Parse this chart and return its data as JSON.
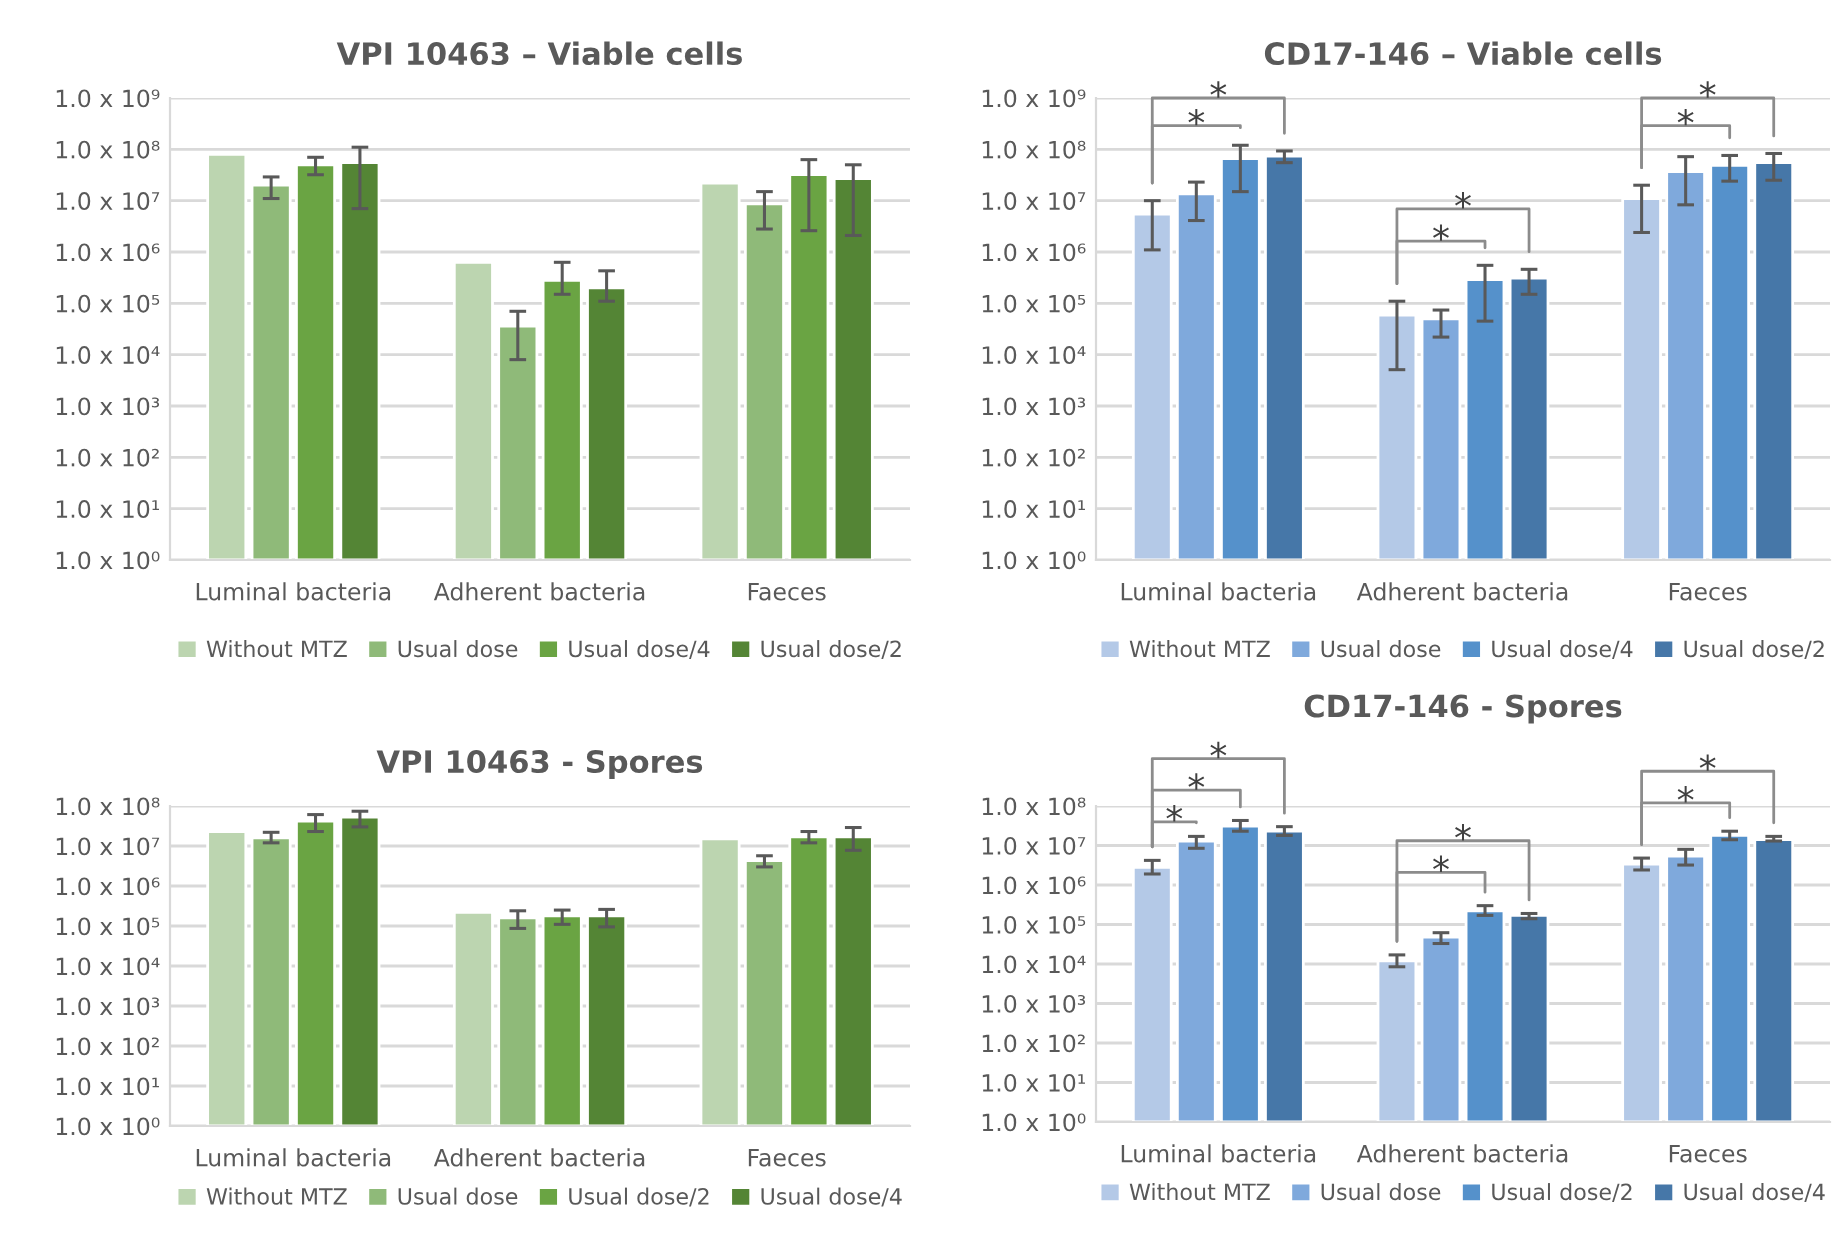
{
  "chart_data": [
    {
      "type": "bar",
      "title": "VPI 10463 – Viable cells",
      "categories": [
        "Luminal bacteria",
        "Adherent bacteria",
        "Faeces"
      ],
      "log": true,
      "grid": "y",
      "legend": "bottom",
      "ylim": [
        1,
        1000000000
      ],
      "yticks": [
        {
          "value": 1,
          "label": "1.0 x 10⁰"
        },
        {
          "value": 10,
          "label": "1.0 x 10¹"
        },
        {
          "value": 100,
          "label": "1.0 x 10²"
        },
        {
          "value": 1000,
          "label": "1.0 x 10³"
        },
        {
          "value": 10000,
          "label": "1.0 x 10⁴"
        },
        {
          "value": 100000,
          "label": "1.0 x 10⁵"
        },
        {
          "value": 1000000,
          "label": "1.0 x 10⁶"
        },
        {
          "value": 10000000,
          "label": "1.0 x 10⁷"
        },
        {
          "value": 100000000,
          "label": "1.0 x 10⁸"
        },
        {
          "value": 1000000000,
          "label": "1.0 x 10⁹"
        }
      ],
      "series": [
        {
          "name": "Without MTZ",
          "color": "#bcd5b0",
          "values": [
            80000000,
            630000,
            22000000
          ]
        },
        {
          "name": "Usual dose",
          "color": "#8fba79",
          "values": [
            20000000,
            36000,
            8700000
          ],
          "errors": [
            [
              11000000,
              29000000
            ],
            [
              8000,
              70000
            ],
            [
              2800000,
              15000000
            ]
          ]
        },
        {
          "name": "Usual dose/4",
          "color": "#6aa443",
          "values": [
            50000000,
            280000,
            32000000
          ],
          "errors": [
            [
              32000000,
              70000000
            ],
            [
              150000,
              630000
            ],
            [
              2600000,
              63000000
            ]
          ]
        },
        {
          "name": "Usual dose/2",
          "color": "#548535",
          "values": [
            55000000,
            200000,
            27000000
          ],
          "errors": [
            [
              7000000,
              110000000
            ],
            [
              110000,
              430000
            ],
            [
              2100000,
              50000000
            ]
          ]
        }
      ]
    },
    {
      "type": "bar",
      "title": "CD17-146 – Viable cells",
      "categories": [
        "Luminal bacteria",
        "Adherent bacteria",
        "Faeces"
      ],
      "log": true,
      "grid": "y",
      "legend": "bottom",
      "ylim": [
        1,
        1000000000
      ],
      "yticks": [
        {
          "value": 1,
          "label": "1.0 x 10⁰"
        },
        {
          "value": 10,
          "label": "1.0 x 10¹"
        },
        {
          "value": 100,
          "label": "1.0 x 10²"
        },
        {
          "value": 1000,
          "label": "1.0 x 10³"
        },
        {
          "value": 10000,
          "label": "1.0 x 10⁴"
        },
        {
          "value": 100000,
          "label": "1.0 x 10⁵"
        },
        {
          "value": 1000000,
          "label": "1.0 x 10⁶"
        },
        {
          "value": 10000000,
          "label": "1.0 x 10⁷"
        },
        {
          "value": 100000000,
          "label": "1.0 x 10⁸"
        },
        {
          "value": 1000000000,
          "label": "1.0 x 10⁹"
        }
      ],
      "series": [
        {
          "name": "Without MTZ",
          "color": "#b4c9e7",
          "values": [
            5500000,
            59000,
            11000000
          ],
          "errors": [
            [
              1100000,
              10000000
            ],
            [
              5100,
              110000
            ],
            [
              2400000,
              20000000
            ]
          ]
        },
        {
          "name": "Usual dose",
          "color": "#7fa9dc",
          "values": [
            13500000,
            50000,
            37000000
          ],
          "errors": [
            [
              4100000,
              23000000
            ],
            [
              22000,
              74000
            ],
            [
              8300000,
              72000000
            ]
          ]
        },
        {
          "name": "Usual dose/4",
          "color": "#5591cb",
          "values": [
            66000000,
            290000,
            49000000
          ],
          "errors": [
            [
              15000000,
              120000000
            ],
            [
              45000,
              550000
            ],
            [
              24000000,
              76000000
            ]
          ]
        },
        {
          "name": "Usual dose/2",
          "color": "#4677a8",
          "values": [
            74000000,
            310000,
            55000000
          ],
          "errors": [
            [
              55000000,
              93000000
            ],
            [
              150000,
              460000
            ],
            [
              25000000,
              83000000
            ]
          ]
        }
      ],
      "annotations": [
        "*",
        "*",
        "*",
        "*",
        "*",
        "*"
      ]
    },
    {
      "type": "bar",
      "title": "VPI 10463 - Spores",
      "categories": [
        "Luminal bacteria",
        "Adherent bacteria",
        "Faeces"
      ],
      "log": true,
      "grid": "y",
      "legend": "bottom",
      "ylim": [
        1,
        100000000
      ],
      "yticks": [
        {
          "value": 1,
          "label": "1.0 x 10⁰"
        },
        {
          "value": 10,
          "label": "1.0 x 10¹"
        },
        {
          "value": 100,
          "label": "1.0 x 10²"
        },
        {
          "value": 1000,
          "label": "1.0 x 10³"
        },
        {
          "value": 10000,
          "label": "1.0 x 10⁴"
        },
        {
          "value": 100000,
          "label": "1.0 x 10⁵"
        },
        {
          "value": 1000000,
          "label": "1.0 x 10⁶"
        },
        {
          "value": 10000000,
          "label": "1.0 x 10⁷"
        },
        {
          "value": 100000000,
          "label": "1.0 x 10⁸"
        }
      ],
      "series": [
        {
          "name": "Without MTZ",
          "color": "#bcd5b0",
          "values": [
            23000000,
            220000,
            15000000
          ]
        },
        {
          "name": "Usual dose",
          "color": "#8fba79",
          "values": [
            16000000,
            160000,
            4300000
          ],
          "errors": [
            [
              12000000,
              22000000
            ],
            [
              87000,
              240000
            ],
            [
              3000000,
              5700000
            ]
          ]
        },
        {
          "name": "Usual dose/2",
          "color": "#6aa443",
          "values": [
            42000000,
            180000,
            17000000
          ],
          "errors": [
            [
              23000000,
              61000000
            ],
            [
              110000,
              250000
            ],
            [
              12000000,
              23000000
            ]
          ]
        },
        {
          "name": "Usual dose/4",
          "color": "#548535",
          "values": [
            53000000,
            180000,
            17000000
          ],
          "errors": [
            [
              30000000,
              74000000
            ],
            [
              95000,
              260000
            ],
            [
              7800000,
              29000000
            ]
          ]
        }
      ]
    },
    {
      "type": "bar",
      "title": "CD17-146 - Spores",
      "categories": [
        "Luminal bacteria",
        "Adherent bacteria",
        "Faeces"
      ],
      "log": true,
      "grid": "y",
      "legend": "bottom",
      "ylim": [
        1,
        100000000
      ],
      "yticks": [
        {
          "value": 1,
          "label": "1.0 x 10⁰"
        },
        {
          "value": 10,
          "label": "1.0 x 10¹"
        },
        {
          "value": 100,
          "label": "1.0 x 10²"
        },
        {
          "value": 1000,
          "label": "1.0 x 10³"
        },
        {
          "value": 10000,
          "label": "1.0 x 10⁴"
        },
        {
          "value": 100000,
          "label": "1.0 x 10⁵"
        },
        {
          "value": 1000000,
          "label": "1.0 x 10⁶"
        },
        {
          "value": 10000000,
          "label": "1.0 x 10⁷"
        },
        {
          "value": 100000000,
          "label": "1.0 x 10⁸"
        }
      ],
      "series": [
        {
          "name": "Without MTZ",
          "color": "#b4c9e7",
          "values": [
            2800000,
            12000,
            3400000
          ],
          "errors": [
            [
              1900000,
              4200000
            ],
            [
              8500,
              17000
            ],
            [
              2400000,
              4800000
            ]
          ]
        },
        {
          "name": "Usual dose",
          "color": "#7fa9dc",
          "values": [
            13000000,
            48000,
            5400000
          ],
          "errors": [
            [
              8500000,
              17000000
            ],
            [
              33000,
              62000
            ],
            [
              3200000,
              8000000
            ]
          ]
        },
        {
          "name": "Usual dose/2",
          "color": "#5591cb",
          "values": [
            31000000,
            220000,
            18000000
          ],
          "errors": [
            [
              23000000,
              43000000
            ],
            [
              170000,
              300000
            ],
            [
              14000000,
              23000000
            ]
          ]
        },
        {
          "name": "Usual dose/4",
          "color": "#4677a8",
          "values": [
            23000000,
            170000,
            14000000
          ],
          "errors": [
            [
              18000000,
              30000000
            ],
            [
              140000,
              190000
            ],
            [
              13000000,
              17000000
            ]
          ]
        }
      ],
      "annotations": [
        "*",
        "*",
        "*",
        "*",
        "*",
        "*",
        "*"
      ]
    }
  ]
}
